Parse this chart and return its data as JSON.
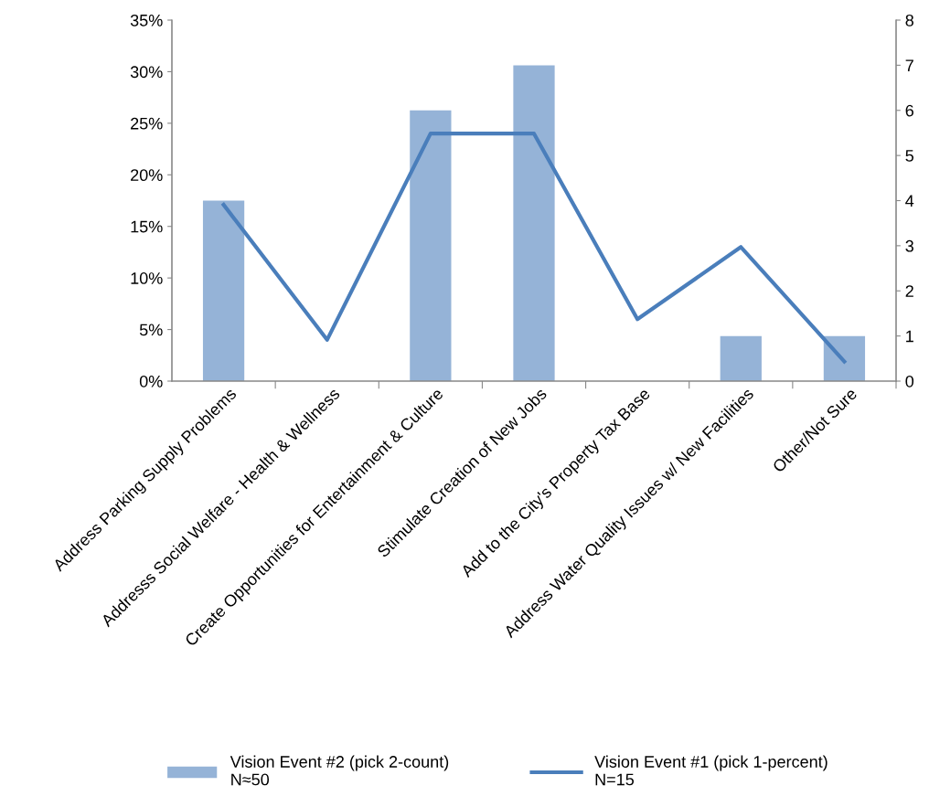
{
  "chart_data": {
    "type": "bar",
    "categories": [
      "Address Parking Supply Problems",
      "Addresss Social Welfare - Health & Wellness",
      "Create Opportunities for Entertainment & Culture",
      "Stimulate Creation of New Jobs",
      "Add to the City's Property Tax Base",
      "Address Water Quality Issues w/ New Facilities",
      "Other/Not Sure"
    ],
    "series": [
      {
        "name": "Vision Event #2 (pick 2-count)\nN≈50",
        "axis": "y2",
        "color": "#95b3d7",
        "values": [
          4,
          0,
          6,
          7,
          0,
          1,
          1
        ]
      },
      {
        "name": "Vision Event #1 (pick 1-percent)\nN=15",
        "type": "line",
        "axis": "y",
        "color": "#4a7ebb",
        "values": [
          17.1,
          4.0,
          24.0,
          24.0,
          6.0,
          13.0,
          1.9
        ]
      }
    ],
    "ylim": [
      0,
      35
    ],
    "yticks": [
      {
        "value": 0,
        "label": "0%"
      },
      {
        "value": 5,
        "label": "5%"
      },
      {
        "value": 10,
        "label": "10%"
      },
      {
        "value": 15,
        "label": "15%"
      },
      {
        "value": 20,
        "label": "20%"
      },
      {
        "value": 25,
        "label": "25%"
      },
      {
        "value": 30,
        "label": "30%"
      },
      {
        "value": 35,
        "label": "35%"
      }
    ],
    "y2lim": [
      0,
      8
    ],
    "y2ticks": [
      0,
      1,
      2,
      3,
      4,
      5,
      6,
      7,
      8
    ],
    "grid": false,
    "legend": "bottom",
    "marker": "none"
  }
}
